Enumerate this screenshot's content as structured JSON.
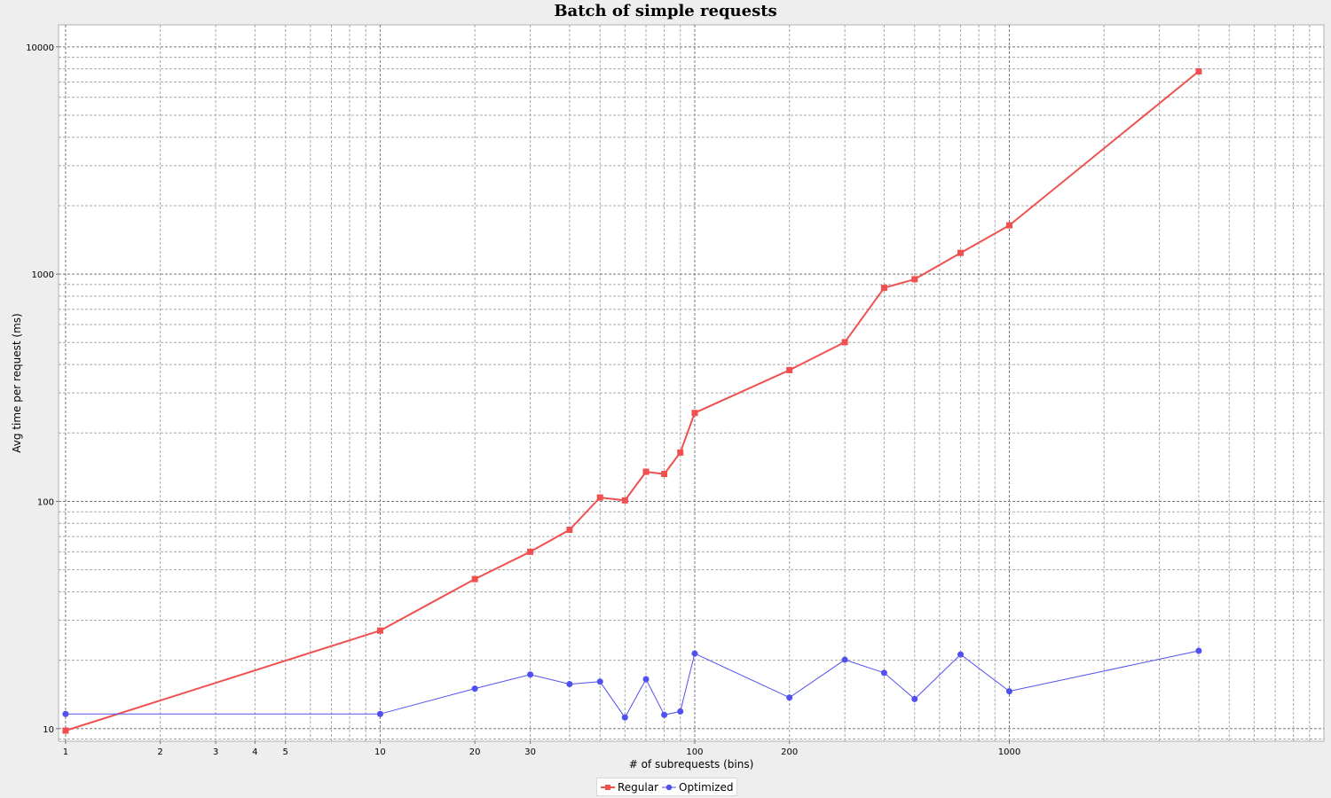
{
  "chart_data": {
    "type": "line",
    "title": "Batch of simple requests",
    "xlabel": "# of subrequests (bins)",
    "ylabel": "Avg time per request (ms)",
    "x_scale": "log",
    "y_scale": "log",
    "xlim": [
      0.95,
      10000
    ],
    "ylim": [
      8.8,
      12500
    ],
    "x_ticks": [
      1,
      2,
      3,
      4,
      5,
      10,
      20,
      30,
      100,
      200,
      1000
    ],
    "x_tick_labels": [
      "1",
      "2",
      "3",
      "4",
      "5",
      "10",
      "20",
      "30",
      "100",
      "200",
      "1000"
    ],
    "y_ticks": [
      10,
      100,
      1000,
      10000
    ],
    "y_tick_labels": [
      "10",
      "100",
      "1000",
      "10000"
    ],
    "grid": true,
    "legend_position": "bottom-center",
    "x": [
      1,
      10,
      20,
      30,
      40,
      50,
      60,
      70,
      80,
      90,
      100,
      200,
      300,
      400,
      500,
      700,
      1000,
      4000
    ],
    "series": [
      {
        "name": "Regular",
        "color": "#f05050",
        "marker": "square",
        "values": [
          9.8,
          27,
          45.5,
          60,
          75,
          104,
          101,
          135,
          132,
          164,
          245,
          378,
          502,
          870,
          950,
          1240,
          1640,
          7800
        ]
      },
      {
        "name": "Optimized",
        "color": "#5050f0",
        "marker": "circle",
        "values": [
          11.6,
          11.6,
          15,
          17.3,
          15.7,
          16.1,
          11.2,
          16.5,
          11.5,
          11.9,
          21.4,
          13.7,
          20.1,
          17.6,
          13.5,
          21.2,
          14.6,
          22
        ]
      }
    ]
  }
}
